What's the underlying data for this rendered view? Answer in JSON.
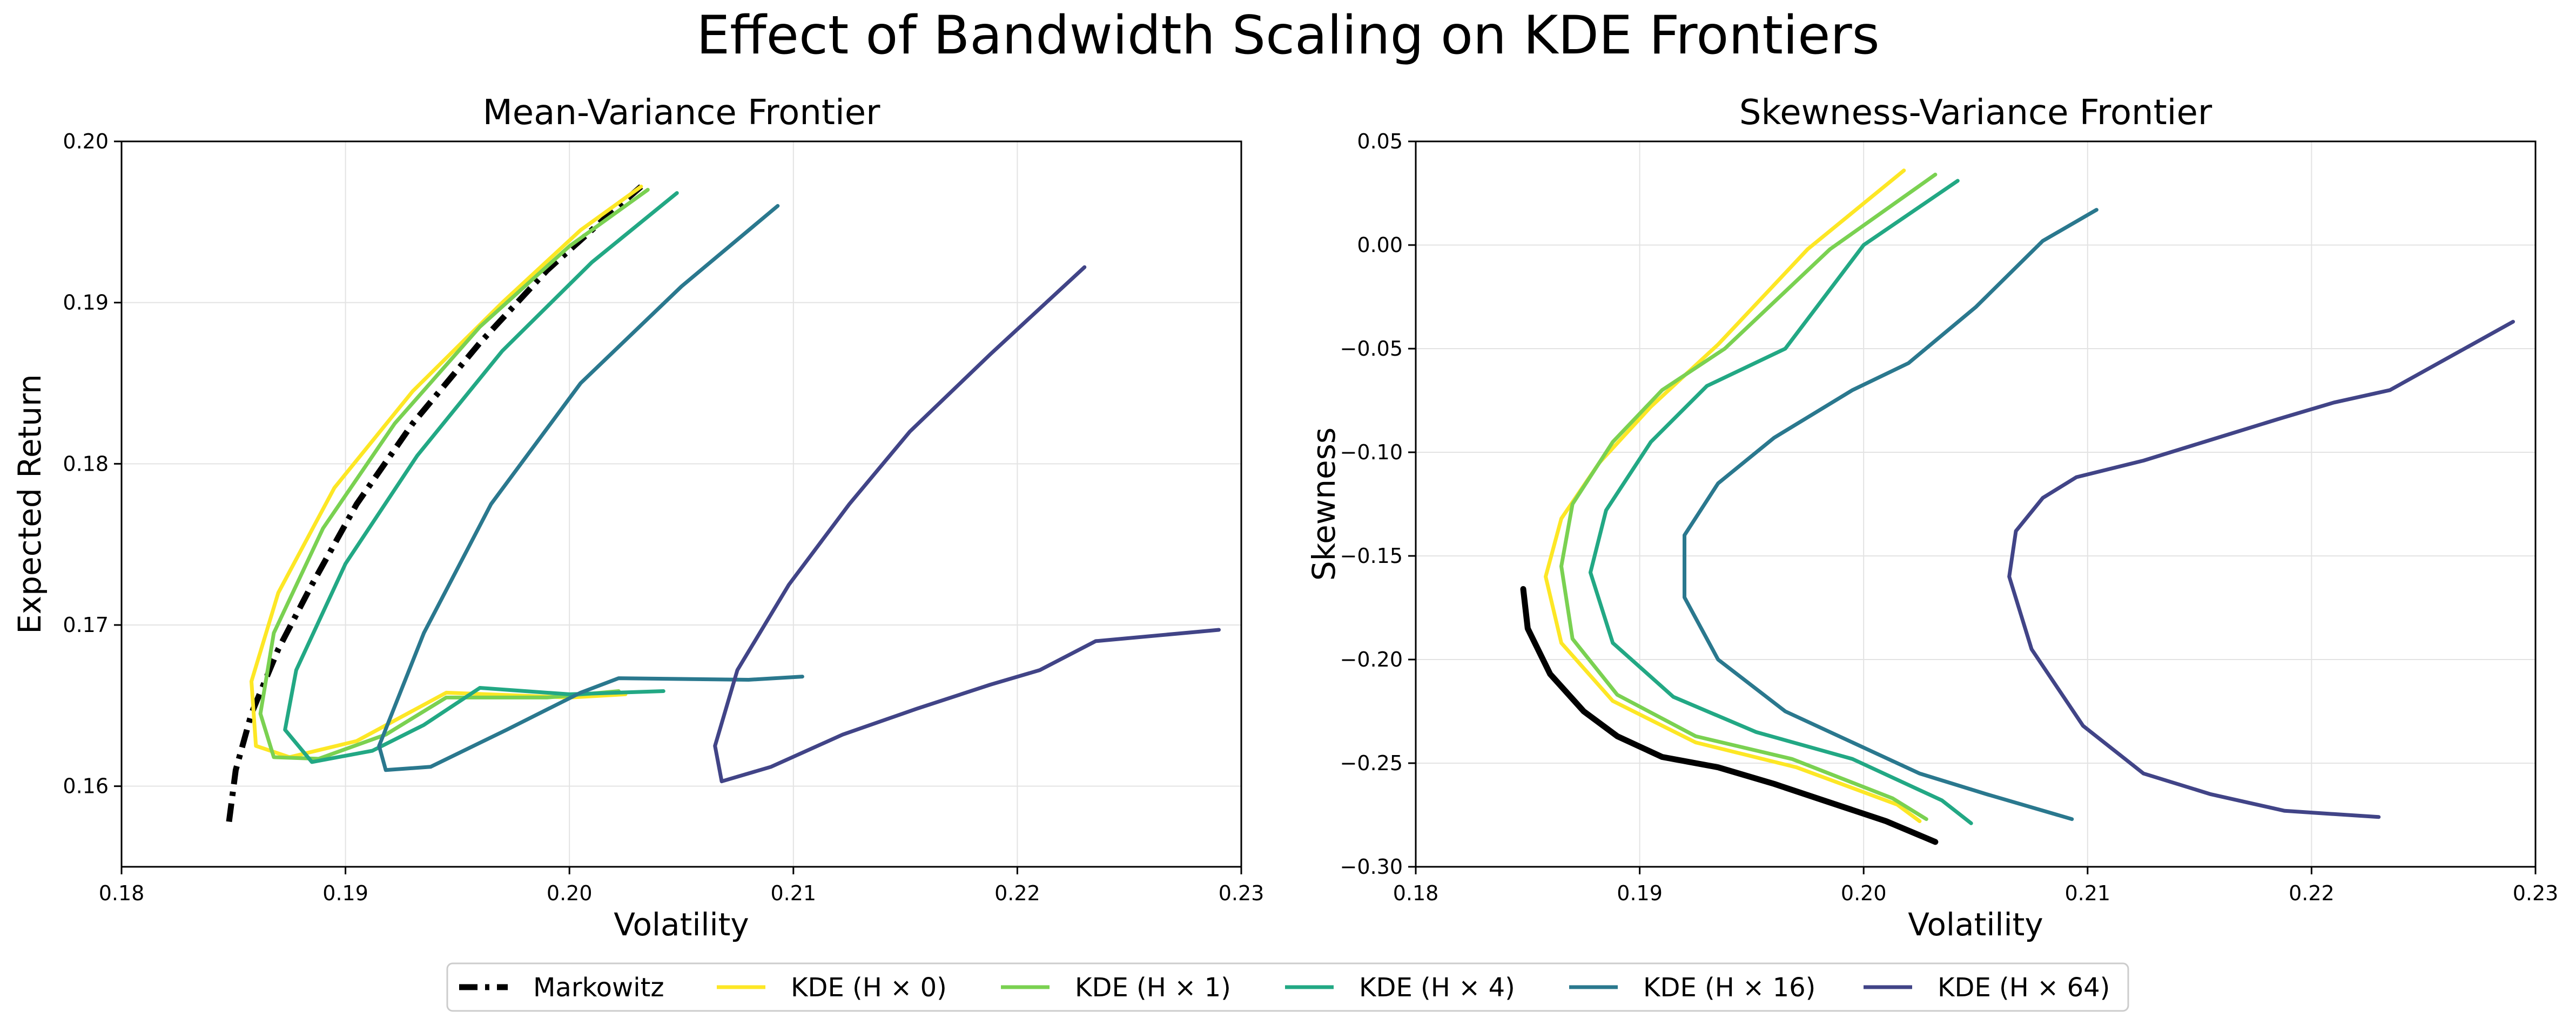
{
  "title": "Effect of Bandwidth Scaling on KDE Frontiers",
  "legend": [
    {
      "label": "Markowitz",
      "color": "#000000",
      "style": "dashdot"
    },
    {
      "label": "KDE (H × 0)",
      "color": "#fde725",
      "style": "solid"
    },
    {
      "label": "KDE (H × 1)",
      "color": "#7ad151",
      "style": "solid"
    },
    {
      "label": "KDE (H × 4)",
      "color": "#22a884",
      "style": "solid"
    },
    {
      "label": "KDE (H × 16)",
      "color": "#2a788e",
      "style": "solid"
    },
    {
      "label": "KDE (H × 64)",
      "color": "#414487",
      "style": "solid"
    }
  ],
  "chart_data": [
    {
      "type": "line",
      "title": "Mean-Variance Frontier",
      "xlabel": "Volatility",
      "ylabel": "Expected Return",
      "xlim": [
        0.18,
        0.23
      ],
      "ylim": [
        0.155,
        0.2
      ],
      "xticks": [
        "0.18",
        "0.19",
        "0.20",
        "0.21",
        "0.22",
        "0.23"
      ],
      "yticks": [
        "0.16",
        "0.17",
        "0.18",
        "0.19",
        "0.20"
      ],
      "grid": true,
      "series": [
        {
          "name": "Markowitz",
          "color": "#000000",
          "style": "dashdot",
          "x": [
            0.1848,
            0.1851,
            0.1858,
            0.187,
            0.1885,
            0.1905,
            0.193,
            0.196,
            0.199,
            0.2018,
            0.2032
          ],
          "y": [
            0.1578,
            0.161,
            0.1645,
            0.1685,
            0.1725,
            0.1775,
            0.1825,
            0.1875,
            0.192,
            0.1955,
            0.1972
          ]
        },
        {
          "name": "KDE (H × 0)",
          "color": "#fde725",
          "style": "solid",
          "x": [
            0.2032,
            0.2005,
            0.197,
            0.193,
            0.1895,
            0.187,
            0.1858,
            0.186,
            0.1875,
            0.1905,
            0.1945,
            0.2,
            0.2025
          ],
          "y": [
            0.1972,
            0.1945,
            0.19,
            0.1845,
            0.1785,
            0.172,
            0.1665,
            0.1625,
            0.1618,
            0.1628,
            0.1658,
            0.1655,
            0.1657
          ]
        },
        {
          "name": "KDE (H × 1)",
          "color": "#7ad151",
          "style": "solid",
          "x": [
            0.2035,
            0.2,
            0.196,
            0.1922,
            0.189,
            0.1868,
            0.1862,
            0.1868,
            0.1888,
            0.1918,
            0.1945,
            0.199,
            0.2022
          ],
          "y": [
            0.197,
            0.1935,
            0.1885,
            0.1825,
            0.176,
            0.1695,
            0.1645,
            0.1618,
            0.1617,
            0.1632,
            0.1655,
            0.1655,
            0.1659
          ]
        },
        {
          "name": "KDE (H × 4)",
          "color": "#22a884",
          "style": "solid",
          "x": [
            0.2048,
            0.201,
            0.197,
            0.1932,
            0.19,
            0.1878,
            0.1873,
            0.1885,
            0.1912,
            0.1935,
            0.196,
            0.2,
            0.2042
          ],
          "y": [
            0.1968,
            0.1925,
            0.187,
            0.1805,
            0.1738,
            0.1672,
            0.1635,
            0.1615,
            0.1622,
            0.1638,
            0.1661,
            0.1657,
            0.1659
          ]
        },
        {
          "name": "KDE (H × 16)",
          "color": "#2a788e",
          "style": "solid",
          "x": [
            0.2093,
            0.205,
            0.2005,
            0.1965,
            0.1935,
            0.1915,
            0.1918,
            0.1938,
            0.1972,
            0.2005,
            0.2022,
            0.208,
            0.2104
          ],
          "y": [
            0.196,
            0.191,
            0.185,
            0.1775,
            0.1695,
            0.1625,
            0.161,
            0.1612,
            0.1635,
            0.1658,
            0.1667,
            0.1666,
            0.1668
          ]
        },
        {
          "name": "KDE (H × 64)",
          "color": "#414487",
          "style": "solid",
          "x": [
            0.223,
            0.2188,
            0.2152,
            0.2125,
            0.2098,
            0.2075,
            0.2065,
            0.2068,
            0.209,
            0.2122,
            0.2155,
            0.2188,
            0.221,
            0.2235,
            0.229
          ],
          "y": [
            0.1922,
            0.1868,
            0.182,
            0.1775,
            0.1725,
            0.1672,
            0.1625,
            0.1603,
            0.1612,
            0.1632,
            0.1648,
            0.1663,
            0.1672,
            0.169,
            0.1697
          ]
        }
      ]
    },
    {
      "type": "line",
      "title": "Skewness-Variance Frontier",
      "xlabel": "Volatility",
      "ylabel": "Skewness",
      "xlim": [
        0.18,
        0.23
      ],
      "ylim": [
        -0.3,
        0.05
      ],
      "xticks": [
        "0.18",
        "0.19",
        "0.20",
        "0.21",
        "0.22",
        "0.23"
      ],
      "yticks": [
        "−0.30",
        "−0.25",
        "−0.20",
        "−0.15",
        "−0.10",
        "−0.05",
        "0.00",
        "0.05"
      ],
      "grid": true,
      "series": [
        {
          "name": "Markowitz",
          "color": "#000000",
          "style": "solid",
          "x": [
            0.1848,
            0.185,
            0.186,
            0.1875,
            0.189,
            0.191,
            0.1935,
            0.196,
            0.1985,
            0.201,
            0.2032
          ],
          "y": [
            -0.166,
            -0.185,
            -0.207,
            -0.225,
            -0.237,
            -0.247,
            -0.252,
            -0.26,
            -0.269,
            -0.278,
            -0.288
          ]
        },
        {
          "name": "KDE (H × 0)",
          "color": "#fde725",
          "style": "solid",
          "x": [
            0.2018,
            0.1975,
            0.1935,
            0.1905,
            0.1882,
            0.1865,
            0.1858,
            0.1865,
            0.1888,
            0.1925,
            0.197,
            0.2015,
            0.2025
          ],
          "y": [
            0.036,
            -0.002,
            -0.048,
            -0.078,
            -0.105,
            -0.132,
            -0.16,
            -0.192,
            -0.22,
            -0.24,
            -0.252,
            -0.27,
            -0.278
          ]
        },
        {
          "name": "KDE (H × 1)",
          "color": "#7ad151",
          "style": "solid",
          "x": [
            0.2032,
            0.1985,
            0.1938,
            0.191,
            0.1888,
            0.187,
            0.1865,
            0.187,
            0.189,
            0.1925,
            0.1968,
            0.2013,
            0.2028
          ],
          "y": [
            0.034,
            -0.002,
            -0.05,
            -0.07,
            -0.095,
            -0.125,
            -0.155,
            -0.19,
            -0.217,
            -0.237,
            -0.248,
            -0.267,
            -0.277
          ]
        },
        {
          "name": "KDE (H × 4)",
          "color": "#22a884",
          "style": "solid",
          "x": [
            0.2042,
            0.2,
            0.1965,
            0.193,
            0.1905,
            0.1885,
            0.1878,
            0.1888,
            0.1915,
            0.1952,
            0.1995,
            0.2035,
            0.2048
          ],
          "y": [
            0.031,
            0.0,
            -0.05,
            -0.068,
            -0.095,
            -0.128,
            -0.158,
            -0.192,
            -0.218,
            -0.235,
            -0.248,
            -0.268,
            -0.279
          ]
        },
        {
          "name": "KDE (H × 16)",
          "color": "#2a788e",
          "style": "solid",
          "x": [
            0.2104,
            0.208,
            0.205,
            0.202,
            0.1995,
            0.196,
            0.1935,
            0.192,
            0.192,
            0.1935,
            0.1965,
            0.1995,
            0.2025,
            0.2055,
            0.2093
          ],
          "y": [
            0.017,
            0.002,
            -0.03,
            -0.057,
            -0.07,
            -0.093,
            -0.115,
            -0.14,
            -0.17,
            -0.2,
            -0.225,
            -0.24,
            -0.255,
            -0.265,
            -0.277
          ]
        },
        {
          "name": "KDE (H × 64)",
          "color": "#414487",
          "style": "solid",
          "x": [
            0.229,
            0.2235,
            0.221,
            0.2185,
            0.2155,
            0.2125,
            0.2095,
            0.208,
            0.2068,
            0.2065,
            0.2075,
            0.2098,
            0.2125,
            0.2155,
            0.2188,
            0.223
          ],
          "y": [
            -0.037,
            -0.07,
            -0.076,
            -0.084,
            -0.094,
            -0.104,
            -0.112,
            -0.122,
            -0.138,
            -0.16,
            -0.195,
            -0.232,
            -0.255,
            -0.265,
            -0.273,
            -0.276
          ]
        }
      ]
    }
  ]
}
